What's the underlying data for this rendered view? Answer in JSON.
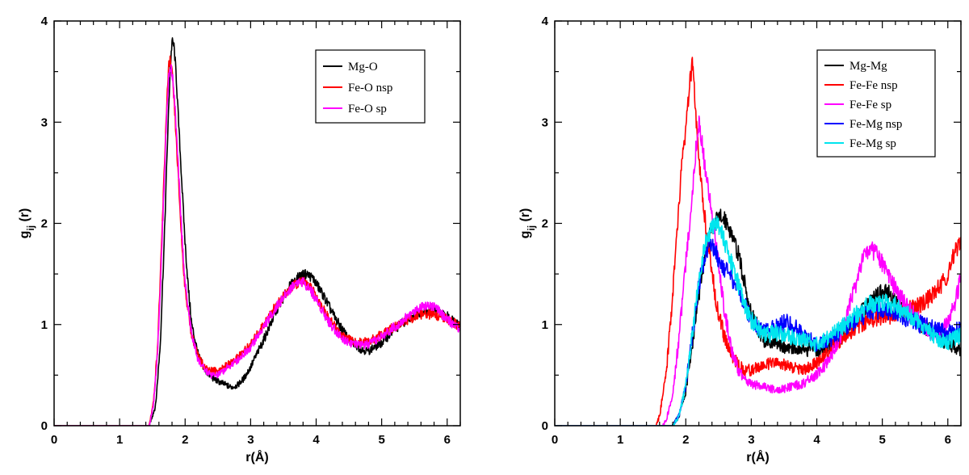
{
  "chart_data": [
    {
      "type": "line",
      "title": "",
      "xlabel": "r(Å)",
      "ylabel": "g_ij (r)",
      "xlim": [
        0,
        6.2
      ],
      "ylim": [
        0,
        4
      ],
      "xticks": [
        "0",
        "1",
        "2",
        "3",
        "4",
        "5",
        "6"
      ],
      "yticks": [
        "0",
        "1",
        "2",
        "3",
        "4"
      ],
      "grid": false,
      "legend": "top-right",
      "series": [
        {
          "name": "Mg-O",
          "color": "#000000",
          "x": [
            0,
            1.45,
            1.55,
            1.62,
            1.68,
            1.73,
            1.77,
            1.8,
            1.83,
            1.86,
            1.9,
            1.95,
            2.0,
            2.05,
            2.1,
            2.2,
            2.3,
            2.4,
            2.5,
            2.6,
            2.7,
            2.8,
            2.9,
            3.0,
            3.2,
            3.4,
            3.6,
            3.75,
            3.85,
            3.95,
            4.1,
            4.3,
            4.5,
            4.7,
            4.8,
            5.0,
            5.2,
            5.4,
            5.6,
            5.8,
            6.0,
            6.2
          ],
          "y": [
            0,
            0,
            0.2,
            0.8,
            1.8,
            2.8,
            3.5,
            3.8,
            3.75,
            3.5,
            3.0,
            2.4,
            1.8,
            1.35,
            1.0,
            0.7,
            0.55,
            0.48,
            0.44,
            0.41,
            0.38,
            0.4,
            0.47,
            0.58,
            0.85,
            1.15,
            1.38,
            1.48,
            1.5,
            1.46,
            1.3,
            1.05,
            0.85,
            0.75,
            0.74,
            0.82,
            0.95,
            1.06,
            1.13,
            1.14,
            1.08,
            1.0
          ]
        },
        {
          "name": "Fe-O nsp",
          "color": "#ff0000",
          "x": [
            0,
            1.45,
            1.52,
            1.58,
            1.63,
            1.68,
            1.72,
            1.75,
            1.77,
            1.8,
            1.85,
            1.9,
            1.95,
            2.0,
            2.1,
            2.2,
            2.3,
            2.4,
            2.5,
            2.6,
            2.7,
            2.8,
            3.0,
            3.2,
            3.4,
            3.6,
            3.7,
            3.8,
            3.9,
            4.0,
            4.2,
            4.4,
            4.6,
            4.8,
            5.0,
            5.2,
            5.4,
            5.6,
            5.8,
            6.0,
            6.2
          ],
          "y": [
            0,
            0,
            0.25,
            0.8,
            1.6,
            2.5,
            3.2,
            3.55,
            3.62,
            3.5,
            3.0,
            2.4,
            1.8,
            1.35,
            0.9,
            0.68,
            0.58,
            0.55,
            0.54,
            0.58,
            0.62,
            0.68,
            0.8,
            1.0,
            1.2,
            1.35,
            1.4,
            1.43,
            1.38,
            1.28,
            1.05,
            0.88,
            0.82,
            0.83,
            0.9,
            0.98,
            1.05,
            1.1,
            1.1,
            1.05,
            0.98
          ]
        },
        {
          "name": "Fe-O sp",
          "color": "#ff00ff",
          "x": [
            0,
            1.45,
            1.52,
            1.58,
            1.63,
            1.68,
            1.72,
            1.75,
            1.78,
            1.81,
            1.85,
            1.9,
            1.95,
            2.0,
            2.1,
            2.2,
            2.3,
            2.4,
            2.5,
            2.6,
            2.7,
            2.8,
            3.0,
            3.2,
            3.4,
            3.6,
            3.7,
            3.8,
            3.9,
            4.0,
            4.2,
            4.4,
            4.6,
            4.8,
            5.0,
            5.2,
            5.4,
            5.6,
            5.7,
            5.8,
            6.0,
            6.2
          ],
          "y": [
            0,
            0,
            0.22,
            0.75,
            1.5,
            2.4,
            3.1,
            3.45,
            3.55,
            3.45,
            3.1,
            2.5,
            1.9,
            1.4,
            0.9,
            0.65,
            0.55,
            0.5,
            0.5,
            0.55,
            0.6,
            0.65,
            0.78,
            0.98,
            1.18,
            1.35,
            1.42,
            1.42,
            1.36,
            1.25,
            1.02,
            0.86,
            0.8,
            0.8,
            0.88,
            0.98,
            1.08,
            1.18,
            1.2,
            1.18,
            1.05,
            0.95
          ]
        }
      ]
    },
    {
      "type": "line",
      "title": "",
      "xlabel": "r(Å)",
      "ylabel": "g_ij (r)",
      "xlim": [
        0,
        6.2
      ],
      "ylim": [
        0,
        4
      ],
      "xticks": [
        "0",
        "1",
        "2",
        "3",
        "4",
        "5",
        "6"
      ],
      "yticks": [
        "0",
        "1",
        "2",
        "3",
        "4"
      ],
      "grid": false,
      "legend": "top-right",
      "series": [
        {
          "name": "Mg-Mg",
          "color": "#000000",
          "x": [
            0,
            1.8,
            1.9,
            2.0,
            2.1,
            2.2,
            2.3,
            2.4,
            2.5,
            2.6,
            2.7,
            2.8,
            2.9,
            3.0,
            3.2,
            3.4,
            3.6,
            3.8,
            4.0,
            4.2,
            4.4,
            4.6,
            4.8,
            5.0,
            5.1,
            5.2,
            5.4,
            5.6,
            5.8,
            6.0,
            6.2
          ],
          "y": [
            0,
            0,
            0.1,
            0.35,
            0.8,
            1.3,
            1.7,
            1.95,
            2.05,
            2.05,
            1.9,
            1.7,
            1.4,
            1.1,
            0.85,
            0.8,
            0.78,
            0.75,
            0.75,
            0.8,
            0.9,
            1.05,
            1.2,
            1.32,
            1.3,
            1.22,
            1.12,
            1.0,
            0.9,
            0.82,
            0.75
          ]
        },
        {
          "name": "Fe-Fe nsp",
          "color": "#ff0000",
          "x": [
            0,
            1.55,
            1.6,
            1.7,
            1.8,
            1.9,
            1.95,
            2.0,
            2.05,
            2.1,
            2.15,
            2.2,
            2.3,
            2.4,
            2.5,
            2.6,
            2.7,
            2.8,
            2.9,
            3.0,
            3.2,
            3.4,
            3.6,
            3.8,
            4.0,
            4.2,
            4.4,
            4.6,
            4.8,
            5.0,
            5.2,
            5.4,
            5.6,
            5.8,
            6.0,
            6.1,
            6.2
          ],
          "y": [
            0,
            0,
            0.1,
            0.5,
            1.3,
            2.2,
            2.7,
            2.9,
            3.3,
            3.6,
            3.1,
            2.6,
            2.0,
            1.5,
            1.1,
            0.85,
            0.7,
            0.6,
            0.55,
            0.55,
            0.6,
            0.62,
            0.58,
            0.55,
            0.62,
            0.75,
            0.88,
            0.98,
            1.05,
            1.08,
            1.1,
            1.15,
            1.2,
            1.3,
            1.5,
            1.7,
            1.8
          ]
        },
        {
          "name": "Fe-Fe sp",
          "color": "#ff00ff",
          "x": [
            0,
            1.65,
            1.7,
            1.8,
            1.9,
            2.0,
            2.1,
            2.15,
            2.2,
            2.25,
            2.3,
            2.4,
            2.5,
            2.6,
            2.7,
            2.8,
            2.9,
            3.0,
            3.1,
            3.2,
            3.4,
            3.6,
            3.8,
            4.0,
            4.2,
            4.4,
            4.6,
            4.7,
            4.8,
            4.9,
            5.0,
            5.2,
            5.4,
            5.6,
            5.8,
            6.0,
            6.1,
            6.2
          ],
          "y": [
            0,
            0,
            0.05,
            0.3,
            0.9,
            1.6,
            2.3,
            2.7,
            3.0,
            2.8,
            2.5,
            2.1,
            1.6,
            1.1,
            0.75,
            0.55,
            0.45,
            0.42,
            0.4,
            0.38,
            0.35,
            0.38,
            0.42,
            0.5,
            0.65,
            0.95,
            1.4,
            1.65,
            1.75,
            1.7,
            1.6,
            1.35,
            1.15,
            1.0,
            0.9,
            1.0,
            1.2,
            1.45
          ]
        },
        {
          "name": "Fe-Mg nsp",
          "color": "#0000ff",
          "x": [
            0,
            1.8,
            1.9,
            2.0,
            2.1,
            2.2,
            2.3,
            2.35,
            2.4,
            2.45,
            2.5,
            2.6,
            2.7,
            2.8,
            2.9,
            3.0,
            3.2,
            3.4,
            3.5,
            3.6,
            3.8,
            4.0,
            4.2,
            4.4,
            4.6,
            4.8,
            5.0,
            5.2,
            5.4,
            5.6,
            5.8,
            6.0,
            6.2
          ],
          "y": [
            0,
            0,
            0.1,
            0.4,
            0.9,
            1.4,
            1.7,
            1.78,
            1.8,
            1.72,
            1.65,
            1.55,
            1.45,
            1.35,
            1.2,
            1.05,
            0.92,
            0.98,
            1.02,
            1.0,
            0.9,
            0.8,
            0.85,
            0.95,
            1.05,
            1.12,
            1.15,
            1.12,
            1.05,
            1.0,
            0.95,
            0.92,
            0.95
          ]
        },
        {
          "name": "Fe-Mg sp",
          "color": "#00e5ee",
          "x": [
            0,
            1.8,
            1.9,
            2.0,
            2.1,
            2.2,
            2.3,
            2.4,
            2.45,
            2.5,
            2.55,
            2.6,
            2.7,
            2.8,
            2.9,
            3.0,
            3.2,
            3.4,
            3.6,
            3.8,
            4.0,
            4.2,
            4.4,
            4.6,
            4.8,
            5.0,
            5.2,
            5.4,
            5.6,
            5.8,
            6.0,
            6.2
          ],
          "y": [
            0,
            0,
            0.1,
            0.4,
            0.9,
            1.45,
            1.8,
            1.95,
            2.0,
            1.98,
            1.9,
            1.8,
            1.6,
            1.4,
            1.2,
            1.05,
            0.9,
            0.92,
            0.88,
            0.85,
            0.8,
            0.88,
            0.98,
            1.1,
            1.2,
            1.22,
            1.18,
            1.1,
            1.0,
            0.88,
            0.82,
            0.9
          ]
        }
      ]
    }
  ]
}
